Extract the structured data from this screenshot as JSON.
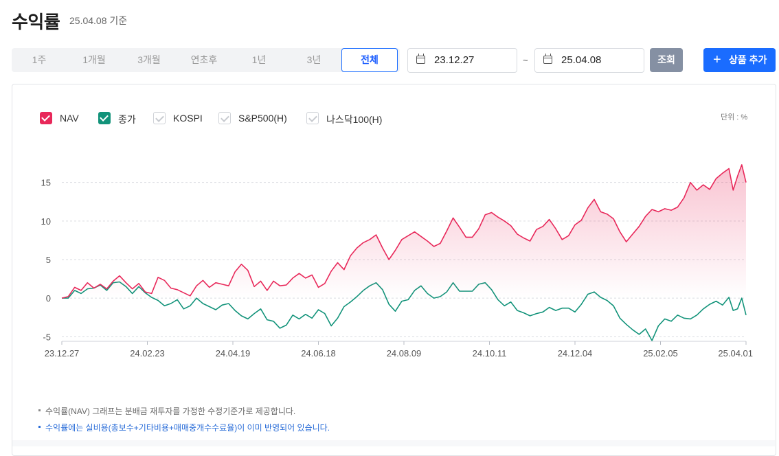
{
  "header": {
    "title": "수익률",
    "as_of": "25.04.08 기준"
  },
  "periods": [
    "1주",
    "1개월",
    "3개월",
    "연초후",
    "1년",
    "3년",
    "전체"
  ],
  "active_period": "전체",
  "date_range": {
    "start": "23.12.27",
    "separator": "~",
    "end": "25.04.08"
  },
  "buttons": {
    "search": "조회",
    "add_product": "상품 추가"
  },
  "legend": [
    {
      "label": "NAV",
      "checked": true,
      "color": "#e8285a"
    },
    {
      "label": "종가",
      "checked": true,
      "color": "#12937a"
    },
    {
      "label": "KOSPI",
      "checked": false,
      "color": "#d0d3d8"
    },
    {
      "label": "S&P500(H)",
      "checked": false,
      "color": "#d0d3d8"
    },
    {
      "label": "나스닥100(H)",
      "checked": false,
      "color": "#d0d3d8"
    }
  ],
  "unit_label": "단위 : %",
  "notes": [
    "수익률(NAV) 그래프는 분배금 재투자를 가정한 수정기준가로 제공합니다.",
    "수익률에는 실비용(총보수+기타비용+매매중개수수료율)이 이미 반영되어 있습니다."
  ],
  "chart_data": {
    "type": "line",
    "x_tick_labels": [
      "23.12.27",
      "24.02.23",
      "24.04.19",
      "24.06.18",
      "24.08.09",
      "24.10.11",
      "24.12.04",
      "25.02.05",
      "25.04.01"
    ],
    "y_ticks": [
      -5,
      0,
      5,
      10,
      15
    ],
    "ylim": [
      -5.6,
      18
    ],
    "x_axis_note": "x values are trading-day index from 23.12.27 (0) to 25.04.08 (320); tick labels at 0,40,80,120,160,200,240,280,320",
    "grid": true,
    "legend_position": "top-left",
    "series": [
      {
        "name": "NAV",
        "color": "#e8285a",
        "fill": true,
        "points": [
          [
            0,
            0
          ],
          [
            3,
            0.2
          ],
          [
            6,
            1.4
          ],
          [
            9,
            1.0
          ],
          [
            12,
            2.0
          ],
          [
            15,
            1.3
          ],
          [
            18,
            1.8
          ],
          [
            21,
            1.2
          ],
          [
            24,
            2.2
          ],
          [
            27,
            2.9
          ],
          [
            30,
            2.0
          ],
          [
            33,
            1.2
          ],
          [
            36,
            1.9
          ],
          [
            39,
            0.8
          ],
          [
            42,
            0.6
          ],
          [
            45,
            2.7
          ],
          [
            48,
            2.3
          ],
          [
            51,
            1.3
          ],
          [
            54,
            1.1
          ],
          [
            57,
            0.7
          ],
          [
            60,
            0.3
          ],
          [
            63,
            1.6
          ],
          [
            66,
            2.3
          ],
          [
            69,
            1.4
          ],
          [
            72,
            2.0
          ],
          [
            75,
            1.8
          ],
          [
            78,
            1.6
          ],
          [
            81,
            3.4
          ],
          [
            84,
            4.4
          ],
          [
            87,
            3.6
          ],
          [
            90,
            1.5
          ],
          [
            93,
            2.2
          ],
          [
            96,
            1.0
          ],
          [
            99,
            2.2
          ],
          [
            102,
            1.6
          ],
          [
            105,
            1.7
          ],
          [
            108,
            2.6
          ],
          [
            111,
            3.2
          ],
          [
            114,
            2.6
          ],
          [
            117,
            3.0
          ],
          [
            120,
            1.4
          ],
          [
            123,
            1.9
          ],
          [
            126,
            3.5
          ],
          [
            129,
            4.6
          ],
          [
            132,
            3.7
          ],
          [
            135,
            5.5
          ],
          [
            138,
            6.5
          ],
          [
            141,
            7.2
          ],
          [
            144,
            7.6
          ],
          [
            147,
            8.2
          ],
          [
            150,
            6.5
          ],
          [
            153,
            5.0
          ],
          [
            156,
            6.2
          ],
          [
            159,
            7.6
          ],
          [
            162,
            8.1
          ],
          [
            165,
            8.6
          ],
          [
            168,
            8.0
          ],
          [
            171,
            7.4
          ],
          [
            174,
            6.7
          ],
          [
            177,
            7.1
          ],
          [
            180,
            8.7
          ],
          [
            183,
            10.4
          ],
          [
            186,
            9.2
          ],
          [
            189,
            7.9
          ],
          [
            192,
            7.9
          ],
          [
            195,
            9.0
          ],
          [
            198,
            10.8
          ],
          [
            201,
            11.1
          ],
          [
            204,
            10.5
          ],
          [
            207,
            10.0
          ],
          [
            210,
            9.4
          ],
          [
            213,
            8.3
          ],
          [
            216,
            7.8
          ],
          [
            219,
            7.4
          ],
          [
            222,
            8.9
          ],
          [
            225,
            9.3
          ],
          [
            228,
            10.2
          ],
          [
            231,
            9.0
          ],
          [
            234,
            7.6
          ],
          [
            237,
            8.1
          ],
          [
            240,
            9.5
          ],
          [
            243,
            10.1
          ],
          [
            246,
            11.7
          ],
          [
            249,
            12.8
          ],
          [
            252,
            11.2
          ],
          [
            255,
            10.9
          ],
          [
            258,
            10.3
          ],
          [
            261,
            8.6
          ],
          [
            264,
            7.3
          ],
          [
            267,
            8.3
          ],
          [
            270,
            9.3
          ],
          [
            273,
            10.6
          ],
          [
            276,
            11.5
          ],
          [
            279,
            11.2
          ],
          [
            282,
            11.6
          ],
          [
            285,
            11.4
          ],
          [
            288,
            11.8
          ],
          [
            291,
            13.0
          ],
          [
            294,
            15.0
          ],
          [
            297,
            14.0
          ],
          [
            300,
            14.7
          ],
          [
            303,
            14.1
          ],
          [
            306,
            15.5
          ],
          [
            309,
            16.2
          ],
          [
            312,
            16.8
          ],
          [
            314,
            14.0
          ],
          [
            316,
            15.8
          ],
          [
            318,
            17.3
          ],
          [
            320,
            15.0
          ]
        ]
      },
      {
        "name": "종가",
        "color": "#12937a",
        "fill": false,
        "points": [
          [
            0,
            0
          ],
          [
            3,
            0
          ],
          [
            6,
            1.0
          ],
          [
            9,
            0.6
          ],
          [
            12,
            1.2
          ],
          [
            15,
            1.3
          ],
          [
            18,
            1.7
          ],
          [
            21,
            1.0
          ],
          [
            24,
            2.0
          ],
          [
            27,
            2.1
          ],
          [
            30,
            1.5
          ],
          [
            33,
            0.6
          ],
          [
            36,
            1.5
          ],
          [
            39,
            0.7
          ],
          [
            42,
            0.1
          ],
          [
            45,
            -0.3
          ],
          [
            48,
            -1.0
          ],
          [
            51,
            -0.7
          ],
          [
            54,
            -0.2
          ],
          [
            57,
            -1.4
          ],
          [
            60,
            -1.0
          ],
          [
            63,
            0.0
          ],
          [
            66,
            -0.7
          ],
          [
            69,
            -1.1
          ],
          [
            72,
            -1.5
          ],
          [
            75,
            -0.9
          ],
          [
            78,
            -0.7
          ],
          [
            81,
            -1.6
          ],
          [
            84,
            -2.3
          ],
          [
            87,
            -2.7
          ],
          [
            90,
            -2.0
          ],
          [
            93,
            -1.4
          ],
          [
            96,
            -2.8
          ],
          [
            99,
            -3.0
          ],
          [
            102,
            -3.9
          ],
          [
            105,
            -3.5
          ],
          [
            108,
            -2.2
          ],
          [
            111,
            -2.7
          ],
          [
            114,
            -2.1
          ],
          [
            117,
            -2.6
          ],
          [
            120,
            -1.5
          ],
          [
            123,
            -2.0
          ],
          [
            126,
            -3.6
          ],
          [
            129,
            -2.6
          ],
          [
            132,
            -1.1
          ],
          [
            135,
            -0.5
          ],
          [
            138,
            0.2
          ],
          [
            141,
            1.0
          ],
          [
            144,
            1.6
          ],
          [
            147,
            2.0
          ],
          [
            150,
            1.1
          ],
          [
            153,
            -0.8
          ],
          [
            156,
            -1.7
          ],
          [
            159,
            -0.4
          ],
          [
            162,
            -0.2
          ],
          [
            165,
            1.0
          ],
          [
            168,
            1.6
          ],
          [
            171,
            0.6
          ],
          [
            174,
            0.0
          ],
          [
            177,
            0.2
          ],
          [
            180,
            0.8
          ],
          [
            183,
            2.0
          ],
          [
            186,
            0.9
          ],
          [
            189,
            0.9
          ],
          [
            192,
            0.9
          ],
          [
            195,
            1.8
          ],
          [
            198,
            2.0
          ],
          [
            201,
            1.1
          ],
          [
            204,
            -0.2
          ],
          [
            207,
            -1.0
          ],
          [
            210,
            -0.5
          ],
          [
            213,
            -1.6
          ],
          [
            216,
            -1.9
          ],
          [
            219,
            -2.3
          ],
          [
            222,
            -2.0
          ],
          [
            225,
            -1.8
          ],
          [
            228,
            -1.2
          ],
          [
            231,
            -1.6
          ],
          [
            234,
            -1.3
          ],
          [
            237,
            -1.3
          ],
          [
            240,
            -1.8
          ],
          [
            243,
            -0.8
          ],
          [
            246,
            0.5
          ],
          [
            249,
            0.8
          ],
          [
            252,
            0.1
          ],
          [
            255,
            -0.3
          ],
          [
            258,
            -1.0
          ],
          [
            261,
            -2.6
          ],
          [
            264,
            -3.4
          ],
          [
            267,
            -4.1
          ],
          [
            270,
            -4.7
          ],
          [
            273,
            -4.0
          ],
          [
            276,
            -5.5
          ],
          [
            279,
            -3.6
          ],
          [
            282,
            -2.7
          ],
          [
            285,
            -3.0
          ],
          [
            288,
            -2.2
          ],
          [
            291,
            -2.6
          ],
          [
            294,
            -2.7
          ],
          [
            297,
            -2.2
          ],
          [
            300,
            -1.4
          ],
          [
            303,
            -0.8
          ],
          [
            306,
            -0.4
          ],
          [
            309,
            -0.9
          ],
          [
            312,
            0.1
          ],
          [
            314,
            -1.6
          ],
          [
            316,
            -1.4
          ],
          [
            318,
            0.0
          ],
          [
            320,
            -2.2
          ]
        ]
      }
    ]
  }
}
